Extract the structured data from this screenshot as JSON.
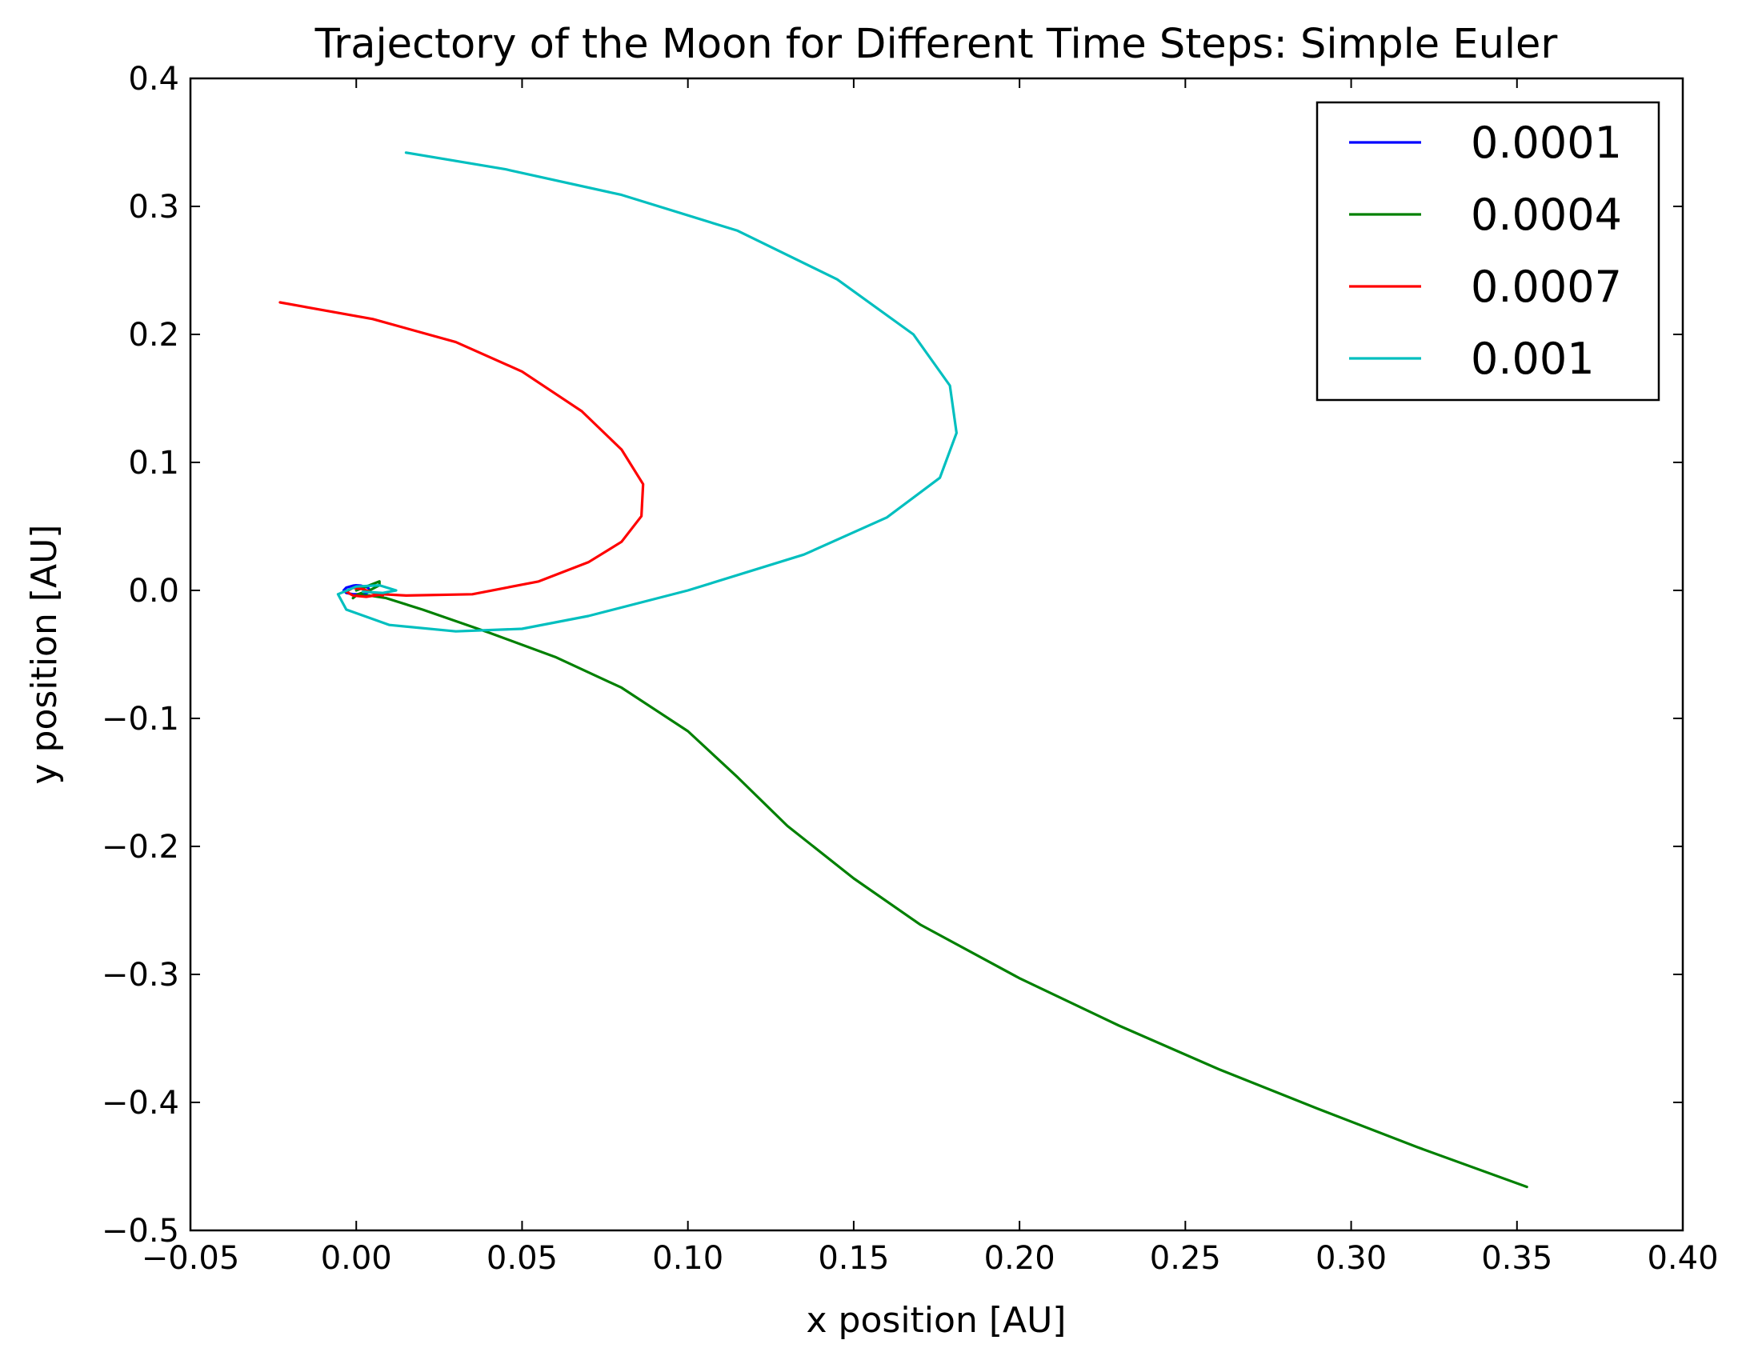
{
  "chart_data": {
    "type": "line",
    "title": "Trajectory of the Moon for Different Time Steps: Simple Euler",
    "xlabel": "x position [AU]",
    "ylabel": "y position [AU]",
    "xlim": [
      -0.05,
      0.4
    ],
    "ylim": [
      -0.5,
      0.4
    ],
    "xticks": [
      -0.05,
      0.0,
      0.05,
      0.1,
      0.15,
      0.2,
      0.25,
      0.3,
      0.35,
      0.4
    ],
    "xtick_labels": [
      "−0.05",
      "0.00",
      "0.05",
      "0.10",
      "0.15",
      "0.20",
      "0.25",
      "0.30",
      "0.35",
      "0.40"
    ],
    "yticks": [
      0.4,
      0.3,
      0.2,
      0.1,
      0.0,
      -0.1,
      -0.2,
      -0.3,
      -0.4,
      -0.5
    ],
    "ytick_labels": [
      "0.4",
      "0.3",
      "0.2",
      "0.1",
      "0.0",
      "−0.1",
      "−0.2",
      "−0.3",
      "−0.4",
      "−0.5"
    ],
    "grid": false,
    "legend_position": "top-right",
    "series": [
      {
        "name": "0.0001",
        "color": "#0000ff",
        "x": [
          0.0,
          0.0015,
          0.0035,
          0.0042,
          0.0032,
          0.0012,
          -0.001,
          -0.003,
          -0.0038,
          -0.003,
          -0.001,
          0.0
        ],
        "y": [
          0.004,
          0.0037,
          0.0022,
          0.0,
          -0.002,
          -0.003,
          -0.003,
          -0.002,
          0.0,
          0.0022,
          0.0037,
          0.004
        ]
      },
      {
        "name": "0.0004",
        "color": "#008000",
        "x": [
          0.0,
          0.004,
          0.007,
          0.007,
          0.004,
          0.0005,
          -0.001,
          0.0,
          0.004,
          0.009,
          0.02,
          0.04,
          0.06,
          0.08,
          0.1,
          0.115,
          0.13,
          0.15,
          0.17,
          0.2,
          0.23,
          0.26,
          0.29,
          0.32,
          0.353
        ],
        "y": [
          0.0,
          0.004,
          0.007,
          0.004,
          0.0,
          -0.003,
          -0.006,
          -0.004,
          -0.004,
          -0.006,
          -0.015,
          -0.033,
          -0.052,
          -0.076,
          -0.11,
          -0.146,
          -0.184,
          -0.225,
          -0.261,
          -0.303,
          -0.34,
          -0.374,
          -0.405,
          -0.435,
          -0.466
        ]
      },
      {
        "name": "0.0007",
        "color": "#ff0000",
        "x": [
          -0.023,
          0.005,
          0.03,
          0.05,
          0.068,
          0.08,
          0.0865,
          0.086,
          0.08,
          0.07,
          0.055,
          0.035,
          0.015,
          0.008,
          0.003,
          -0.001,
          -0.003,
          -0.001,
          0.002,
          0.005,
          0.008
        ],
        "y": [
          0.225,
          0.212,
          0.194,
          0.171,
          0.14,
          0.11,
          0.083,
          0.058,
          0.038,
          0.022,
          0.007,
          -0.003,
          -0.004,
          -0.003,
          -0.005,
          -0.004,
          -0.001,
          0.002,
          0.001,
          -0.002,
          -0.004
        ]
      },
      {
        "name": "0.001",
        "color": "#00bfbf",
        "x": [
          0.015,
          0.045,
          0.08,
          0.115,
          0.145,
          0.168,
          0.179,
          0.181,
          0.176,
          0.16,
          0.135,
          0.1,
          0.07,
          0.05,
          0.03,
          0.01,
          -0.003,
          -0.0055,
          0.0,
          0.007,
          0.012,
          0.008,
          0.002
        ],
        "y": [
          0.342,
          0.329,
          0.309,
          0.281,
          0.243,
          0.2,
          0.16,
          0.123,
          0.088,
          0.057,
          0.028,
          0.0,
          -0.02,
          -0.03,
          -0.032,
          -0.027,
          -0.015,
          -0.003,
          0.003,
          0.004,
          0.0,
          -0.002,
          -0.001
        ]
      }
    ]
  }
}
